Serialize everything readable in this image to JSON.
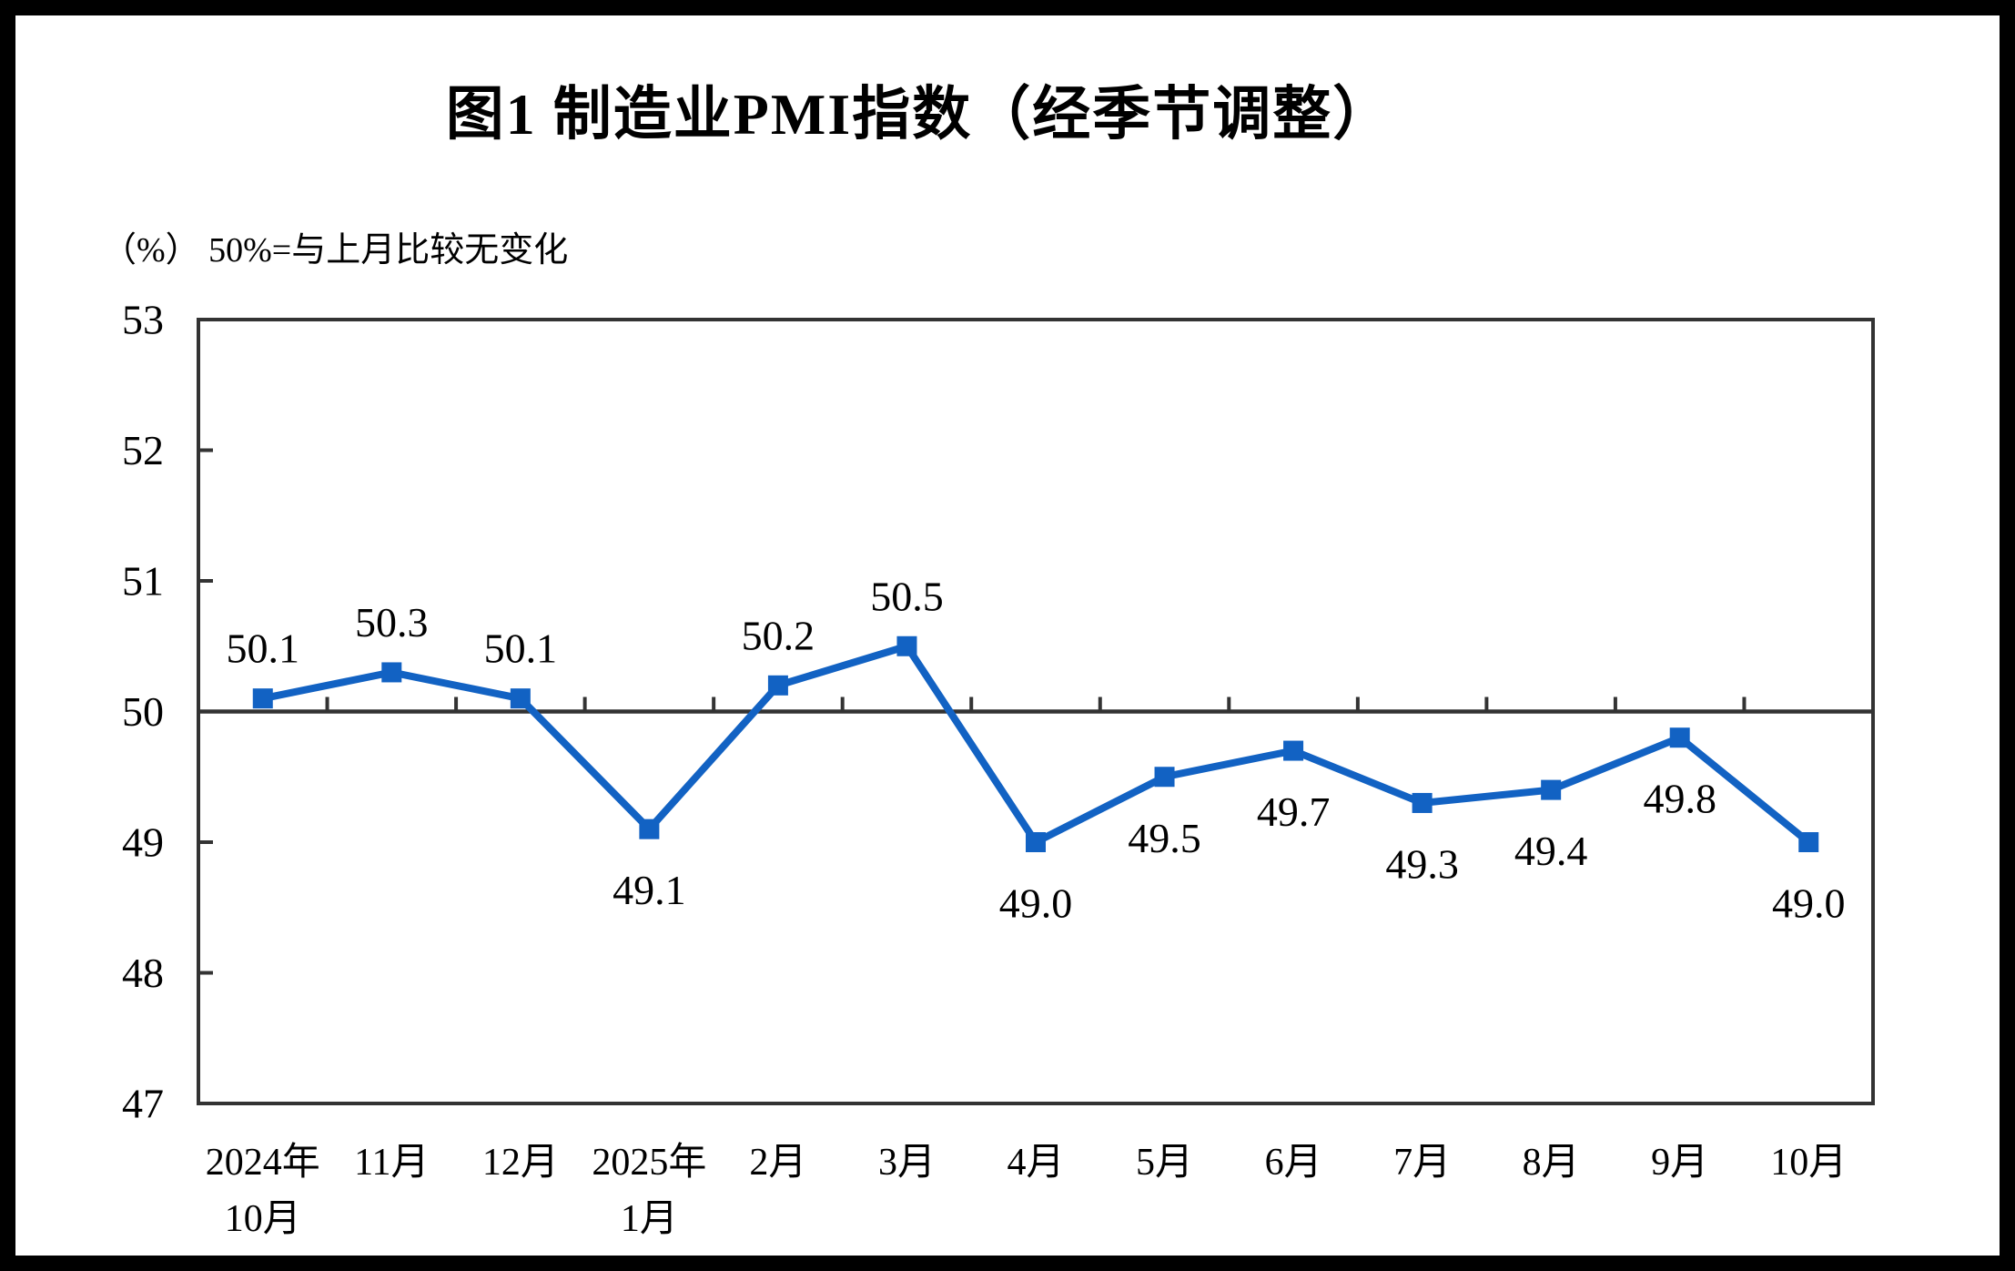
{
  "figure": {
    "title": "图1  制造业PMI指数（经季节调整）",
    "unit_note": "（%）  50%=与上月比较无变化"
  },
  "chart_data": {
    "type": "line",
    "title": "图1  制造业PMI指数（经季节调整）",
    "unit_label": "（%） 50%=与上月比较无变化",
    "x_categories": [
      "2024年\n10月",
      "11月",
      "12月",
      "2025年\n1月",
      "2月",
      "3月",
      "4月",
      "5月",
      "6月",
      "7月",
      "8月",
      "9月",
      "10月"
    ],
    "values": [
      50.1,
      50.3,
      50.1,
      49.1,
      50.2,
      50.5,
      49.0,
      49.5,
      49.7,
      49.3,
      49.4,
      49.8,
      49.0
    ],
    "value_labels": [
      "50.1",
      "50.3",
      "50.1",
      "49.1",
      "50.2",
      "50.5",
      "49.0",
      "49.5",
      "49.7",
      "49.3",
      "49.4",
      "49.8",
      "49.0"
    ],
    "value_label_side": [
      "above",
      "above",
      "above",
      "below",
      "above",
      "above",
      "below",
      "below",
      "below",
      "below",
      "below",
      "below",
      "below"
    ],
    "ylim": [
      47,
      53
    ],
    "ytick_labels": [
      "53",
      "52",
      "51",
      "50",
      "49",
      "48",
      "47"
    ],
    "reference_line_y": 50,
    "marker": "square",
    "grid": false,
    "legend": false,
    "colors": {
      "series": "#1262C3",
      "axis": "#333333",
      "text": "#000000",
      "background": "#FFFFFF",
      "border": "#000000"
    }
  }
}
